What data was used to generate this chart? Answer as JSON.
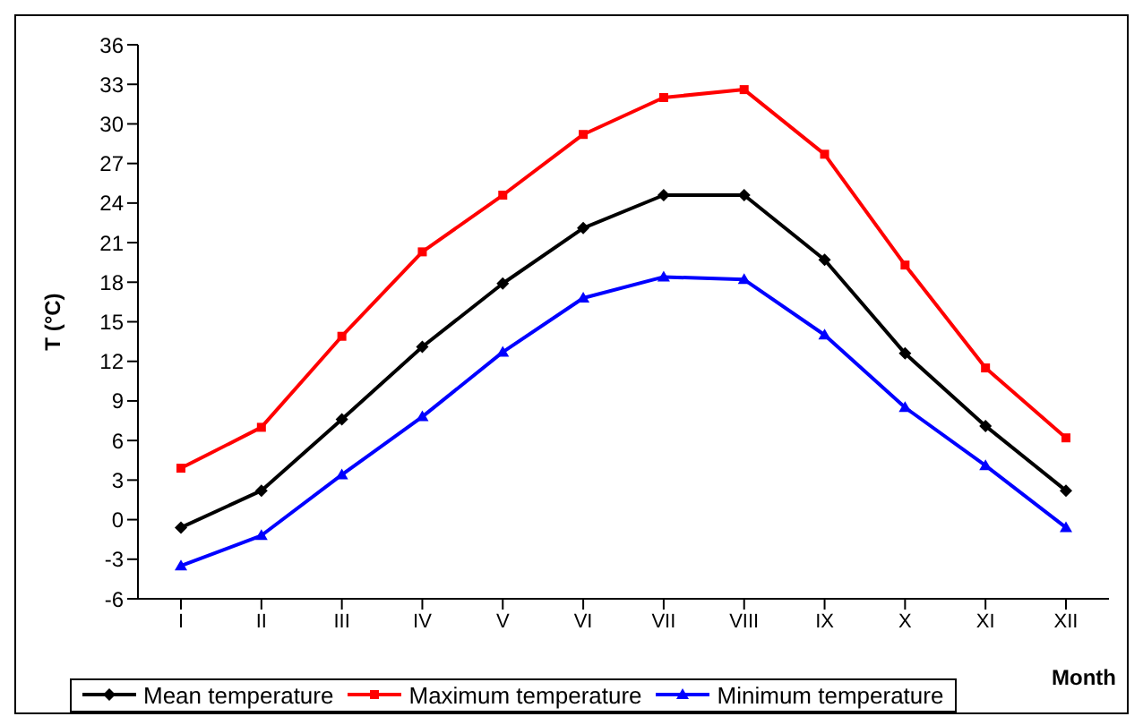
{
  "chart_data": {
    "type": "line",
    "xlabel": "Month",
    "ylabel": "T (°C)",
    "categories": [
      "I",
      "II",
      "III",
      "IV",
      "V",
      "VI",
      "VII",
      "VIII",
      "IX",
      "X",
      "XI",
      "XII"
    ],
    "series": [
      {
        "name": "Mean temperature",
        "color": "#000000",
        "marker": "diamond",
        "values": [
          -0.6,
          2.2,
          7.6,
          13.1,
          17.9,
          22.1,
          24.6,
          24.6,
          19.7,
          12.6,
          7.1,
          2.2
        ]
      },
      {
        "name": "Maximum temperature",
        "color": "#ff0000",
        "marker": "square",
        "values": [
          3.9,
          7.0,
          13.9,
          20.3,
          24.6,
          29.2,
          32.0,
          32.6,
          27.7,
          19.3,
          11.5,
          6.2
        ]
      },
      {
        "name": "Minimum temperature",
        "color": "#0000ff",
        "marker": "triangle",
        "values": [
          -3.5,
          -1.2,
          3.4,
          7.8,
          12.7,
          16.8,
          18.4,
          18.2,
          14.0,
          8.5,
          4.1,
          -0.6
        ]
      }
    ],
    "ylim": [
      -6,
      36
    ],
    "yticks": [
      -6,
      -3,
      0,
      3,
      6,
      9,
      12,
      15,
      18,
      21,
      24,
      27,
      30,
      33,
      36
    ],
    "legend": "bottom",
    "line_style": "solid"
  }
}
